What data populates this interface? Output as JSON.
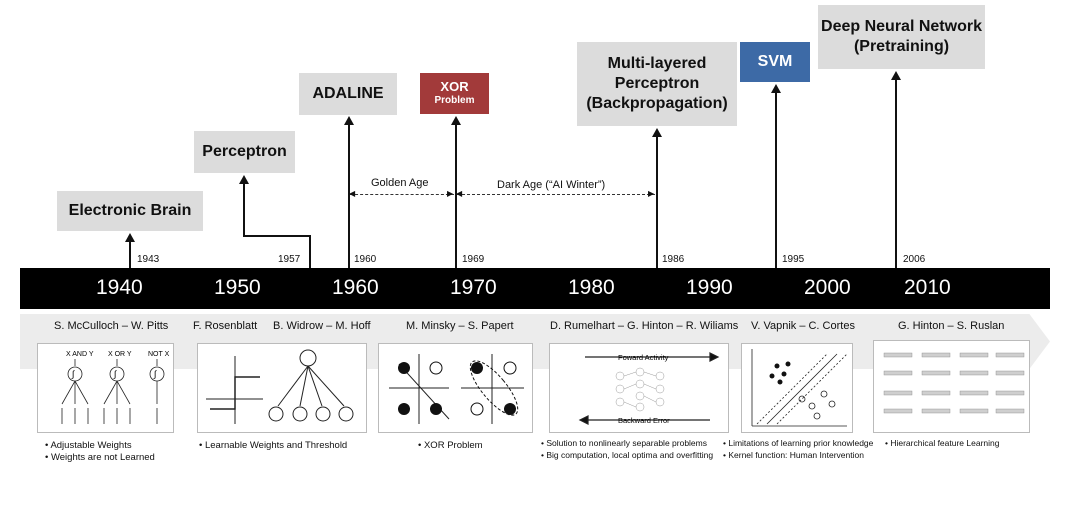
{
  "milestones": {
    "electronic_brain": "Electronic Brain",
    "perceptron": "Perceptron",
    "adaline": "ADALINE",
    "xor": {
      "line1": "XOR",
      "line2": "Problem"
    },
    "mlp": "Multi-layered\nPerceptron\n(Backpropagation)",
    "svm": "SVM",
    "dnn": "Deep Neural Network\n(Pretraining)"
  },
  "years": [
    "1943",
    "1957",
    "1960",
    "1969",
    "1986",
    "1995",
    "2006"
  ],
  "eras": {
    "golden": "Golden Age",
    "dark": "Dark Age (“AI Winter”)"
  },
  "decades": [
    "1940",
    "1950",
    "1960",
    "1970",
    "1980",
    "1990",
    "2000",
    "2010"
  ],
  "authors": [
    "S. McCulloch – W. Pitts",
    "F. Rosenblatt",
    "B. Widrow – M. Hoff",
    "M. Minsky – S. Papert",
    "D. Rumelhart – G. Hinton – R. Wiliams",
    "V. Vapnik – C. Cortes",
    "G. Hinton – S. Ruslan"
  ],
  "panel_labels": {
    "mp": {
      "and": "X AND Y",
      "or": "X OR Y",
      "not": "NOT X",
      "sym": "∫"
    },
    "bp": {
      "forward": "Foward Activity",
      "backward": "Backward Error"
    }
  },
  "notes": {
    "n1": [
      "• Adjustable Weights",
      "• Weights are not Learned"
    ],
    "n2": "• Learnable Weights  and Threshold",
    "n3": "• XOR Problem",
    "n4": [
      "• Solution to nonlinearly separable problems",
      "• Big computation, local optima and overfitting"
    ],
    "n5": [
      "• Limitations of learning prior knowledge",
      "• Kernel function: Human Intervention"
    ],
    "n6": "• Hierarchical feature Learning"
  },
  "colors": {
    "xor_box": "#a23a3a",
    "svm_box": "#3d6aa6",
    "milestone_box": "#dcdcdc"
  }
}
